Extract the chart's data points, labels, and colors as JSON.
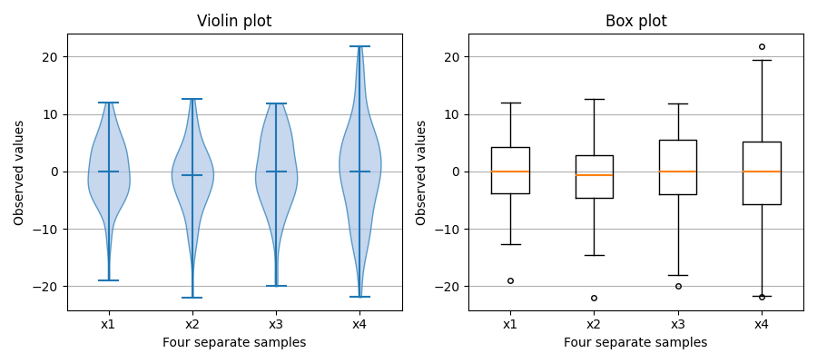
{
  "title_violin": "Violin plot",
  "title_box": "Box plot",
  "xlabel": "Four separate samples",
  "ylabel": "Observed values",
  "categories": [
    "x1",
    "x2",
    "x3",
    "x4"
  ],
  "violin_color": "#AEC6E8",
  "violin_edge_color": "#1F77B4",
  "median_color": "#FF7F0E",
  "figsize": [
    9.0,
    4.0
  ],
  "dpi": 100,
  "grid_color": "#b0b0b0",
  "grid_lw": 0.8
}
